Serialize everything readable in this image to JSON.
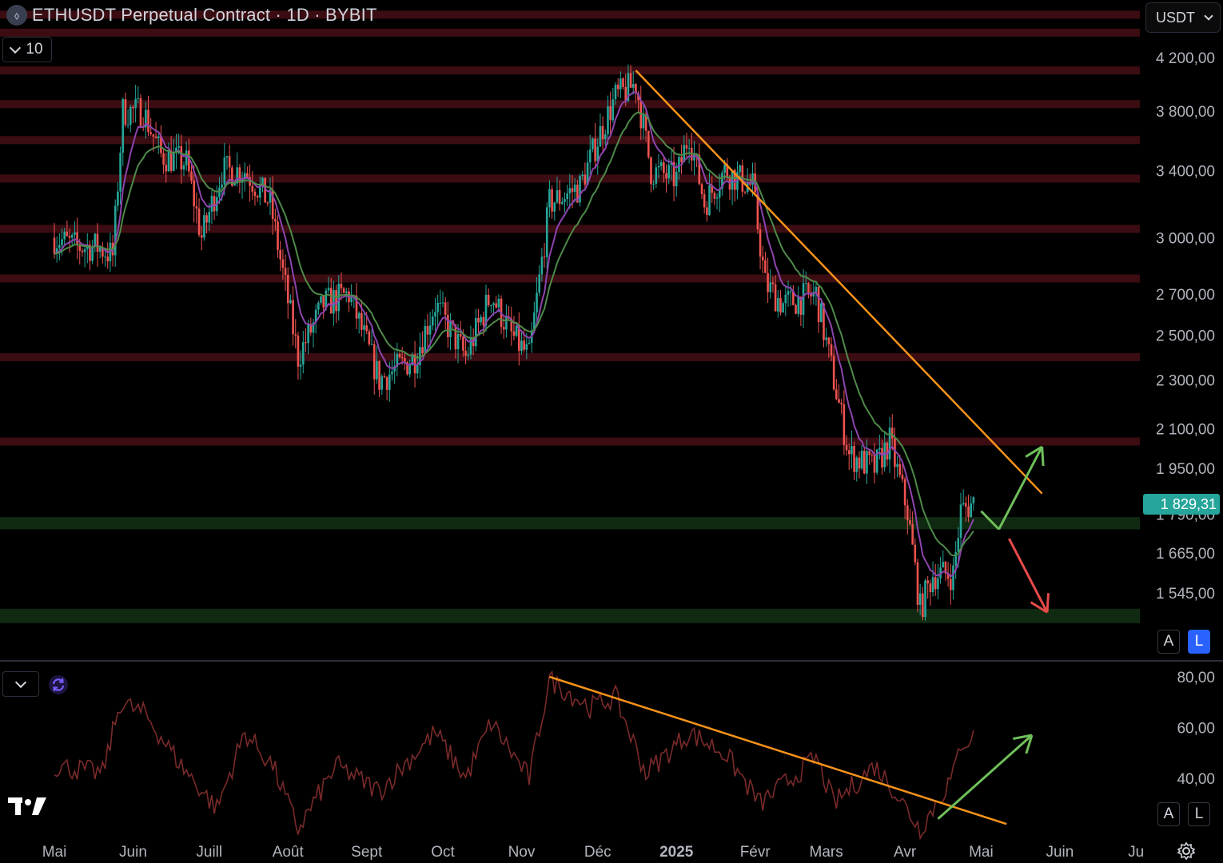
{
  "header": {
    "title": "ETHUSDT Perpetual Contract · 1D · BYBIT",
    "interval_value": "10",
    "currency": "USDT"
  },
  "buttons": {
    "auto_scale": "A",
    "log_scale": "L",
    "rsi_auto": "A",
    "rsi_log": "L"
  },
  "icons": {
    "symbol": "ethereum-logo-icon",
    "sync": "sync-icon",
    "brand": "tradingview-logo-icon",
    "settings": "gear-icon"
  },
  "colors": {
    "background": "#000000",
    "up": "#26a69a",
    "down": "#ef5350",
    "resistance_zone": "#3b0d12",
    "support_zone": "#102a12",
    "trendline": "#f7931a",
    "ema_fast": "#8e44ad",
    "ema_slow": "#4f8a4a",
    "rsi_line": "#7a2a2a",
    "price_badge": "#26a69a",
    "bull_arrow": "#6fbf5a",
    "bear_arrow": "#e84a4a",
    "log_active": "#2962ff"
  },
  "chart_data": {
    "type": "candlestick",
    "symbol": "ETHUSDT",
    "exchange": "BYBIT",
    "timeframe": "1D",
    "log_scale": true,
    "price_axis_ticks": [
      "4 200,00",
      "3 800,00",
      "3 400,00",
      "3 000,00",
      "2 700,00",
      "2 500,00",
      "2 300,00",
      "2 100,00",
      "1 950,00",
      "1 790,00",
      "1 665,00",
      "1 545,00"
    ],
    "price_axis_values": [
      4200,
      3800,
      3400,
      3000,
      2700,
      2500,
      2300,
      2100,
      1950,
      1790,
      1665,
      1545
    ],
    "time_axis_labels": [
      "Mai",
      "Juin",
      "Juill",
      "Août",
      "Sept",
      "Oct",
      "Nov",
      "Déc",
      "2025",
      "Févr",
      "Mars",
      "Avr",
      "Mai",
      "Juin",
      "Ju"
    ],
    "current_price": "1 829,31",
    "price_path": [
      {
        "t": "2024-05-01",
        "p": 3000
      },
      {
        "t": "2024-05-10",
        "p": 2950
      },
      {
        "t": "2024-05-18",
        "p": 2950
      },
      {
        "t": "2024-05-24",
        "p": 2900
      },
      {
        "t": "2024-05-28",
        "p": 3800
      },
      {
        "t": "2024-06-05",
        "p": 3800
      },
      {
        "t": "2024-06-12",
        "p": 3500
      },
      {
        "t": "2024-06-22",
        "p": 3450
      },
      {
        "t": "2024-06-28",
        "p": 3000
      },
      {
        "t": "2024-07-06",
        "p": 3400
      },
      {
        "t": "2024-07-15",
        "p": 3400
      },
      {
        "t": "2024-07-25",
        "p": 3200
      },
      {
        "t": "2024-08-05",
        "p": 2400
      },
      {
        "t": "2024-08-15",
        "p": 2650
      },
      {
        "t": "2024-08-25",
        "p": 2700
      },
      {
        "t": "2024-09-06",
        "p": 2300
      },
      {
        "t": "2024-09-20",
        "p": 2400
      },
      {
        "t": "2024-09-28",
        "p": 2650
      },
      {
        "t": "2024-10-10",
        "p": 2400
      },
      {
        "t": "2024-10-20",
        "p": 2700
      },
      {
        "t": "2024-10-28",
        "p": 2500
      },
      {
        "t": "2024-11-04",
        "p": 2400
      },
      {
        "t": "2024-11-12",
        "p": 3200
      },
      {
        "t": "2024-11-24",
        "p": 3300
      },
      {
        "t": "2024-12-02",
        "p": 3650
      },
      {
        "t": "2024-12-08",
        "p": 3900
      },
      {
        "t": "2024-12-16",
        "p": 4000
      },
      {
        "t": "2024-12-22",
        "p": 3400
      },
      {
        "t": "2025-01-01",
        "p": 3350
      },
      {
        "t": "2025-01-06",
        "p": 3650
      },
      {
        "t": "2025-01-12",
        "p": 3200
      },
      {
        "t": "2025-01-20",
        "p": 3400
      },
      {
        "t": "2025-01-31",
        "p": 3300
      },
      {
        "t": "2025-02-05",
        "p": 2750
      },
      {
        "t": "2025-02-12",
        "p": 2650
      },
      {
        "t": "2025-02-25",
        "p": 2700
      },
      {
        "t": "2025-03-04",
        "p": 2300
      },
      {
        "t": "2025-03-10",
        "p": 2000
      },
      {
        "t": "2025-03-20",
        "p": 1950
      },
      {
        "t": "2025-03-26",
        "p": 2050
      },
      {
        "t": "2025-04-02",
        "p": 1800
      },
      {
        "t": "2025-04-07",
        "p": 1500
      },
      {
        "t": "2025-04-12",
        "p": 1600
      },
      {
        "t": "2025-04-20",
        "p": 1600
      },
      {
        "t": "2025-04-23",
        "p": 1800
      },
      {
        "t": "2025-04-28",
        "p": 1829.31
      }
    ],
    "resistance_levels": [
      4550,
      4400,
      4100,
      3850,
      3600,
      3350,
      3050,
      2780,
      2400,
      2050
    ],
    "support_zones": [
      [
        1740,
        1780
      ],
      [
        1460,
        1500
      ]
    ],
    "trendlines": [
      {
        "from": {
          "t": "2024-12-16",
          "p": 4100
        },
        "to": {
          "t": "2025-05-25",
          "p": 1860
        }
      }
    ],
    "projection_arrows": [
      {
        "direction": "up",
        "points": [
          {
            "t": "2025-05-01",
            "p": 1800
          },
          {
            "t": "2025-05-08",
            "p": 1740
          },
          {
            "t": "2025-05-25",
            "p": 2030
          }
        ]
      },
      {
        "direction": "down",
        "points": [
          {
            "t": "2025-05-12",
            "p": 1710
          },
          {
            "t": "2025-05-27",
            "p": 1490
          }
        ]
      }
    ],
    "rsi": {
      "axis_ticks": [
        "80,00",
        "60,00",
        "40,00"
      ],
      "axis_values": [
        80,
        60,
        40
      ],
      "path": [
        {
          "t": "2024-05-01",
          "v": 45
        },
        {
          "t": "2024-05-20",
          "v": 42
        },
        {
          "t": "2024-05-27",
          "v": 70
        },
        {
          "t": "2024-06-06",
          "v": 65
        },
        {
          "t": "2024-06-20",
          "v": 45
        },
        {
          "t": "2024-07-04",
          "v": 28
        },
        {
          "t": "2024-07-15",
          "v": 58
        },
        {
          "t": "2024-07-26",
          "v": 45
        },
        {
          "t": "2024-08-05",
          "v": 20
        },
        {
          "t": "2024-08-20",
          "v": 45
        },
        {
          "t": "2024-09-06",
          "v": 35
        },
        {
          "t": "2024-09-28",
          "v": 58
        },
        {
          "t": "2024-10-10",
          "v": 40
        },
        {
          "t": "2024-10-20",
          "v": 62
        },
        {
          "t": "2024-11-04",
          "v": 40
        },
        {
          "t": "2024-11-12",
          "v": 79
        },
        {
          "t": "2024-11-28",
          "v": 68
        },
        {
          "t": "2024-12-08",
          "v": 72
        },
        {
          "t": "2024-12-20",
          "v": 42
        },
        {
          "t": "2025-01-06",
          "v": 58
        },
        {
          "t": "2025-01-20",
          "v": 50
        },
        {
          "t": "2025-02-03",
          "v": 30
        },
        {
          "t": "2025-02-25",
          "v": 48
        },
        {
          "t": "2025-03-04",
          "v": 30
        },
        {
          "t": "2025-03-20",
          "v": 45
        },
        {
          "t": "2025-03-26",
          "v": 38
        },
        {
          "t": "2025-04-07",
          "v": 20
        },
        {
          "t": "2025-04-20",
          "v": 41
        },
        {
          "t": "2025-04-23",
          "v": 54
        },
        {
          "t": "2025-04-28",
          "v": 56
        }
      ],
      "trendline": {
        "from": {
          "t": "2024-11-12",
          "v": 80
        },
        "to": {
          "t": "2025-05-11",
          "v": 22
        }
      },
      "arrow": {
        "from": {
          "t": "2025-04-14",
          "v": 24
        },
        "to": {
          "t": "2025-05-21",
          "v": 57
        }
      }
    }
  }
}
